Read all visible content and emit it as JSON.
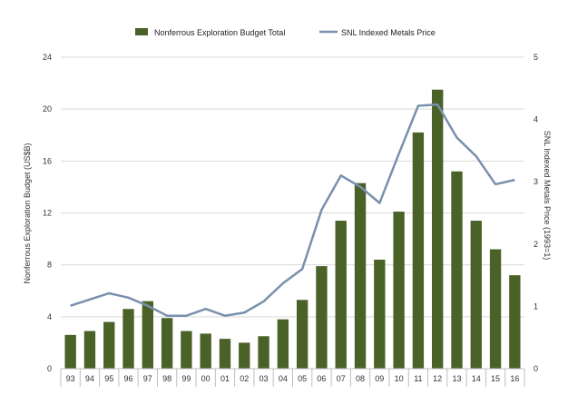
{
  "chart_data": {
    "type": "bar",
    "categories": [
      "93",
      "94",
      "95",
      "96",
      "97",
      "98",
      "99",
      "00",
      "01",
      "02",
      "03",
      "04",
      "05",
      "06",
      "07",
      "08",
      "09",
      "10",
      "11",
      "12",
      "13",
      "14",
      "15",
      "16"
    ],
    "series": [
      {
        "name": "Nonferrous Exploration Budget Total",
        "type": "bar",
        "axis": "left",
        "color": "#4a6128",
        "values": [
          2.6,
          2.9,
          3.6,
          4.6,
          5.2,
          3.9,
          2.9,
          2.7,
          2.3,
          2.0,
          2.5,
          3.8,
          5.3,
          7.9,
          11.4,
          14.3,
          8.4,
          12.1,
          18.2,
          21.5,
          15.2,
          11.4,
          9.2,
          7.2
        ]
      },
      {
        "name": "SNL Indexed Metals Price",
        "type": "line",
        "axis": "right",
        "color": "#7990ad",
        "values": [
          1.01,
          1.11,
          1.21,
          1.14,
          1.01,
          0.85,
          0.85,
          0.96,
          0.85,
          0.9,
          1.08,
          1.37,
          1.6,
          2.55,
          3.1,
          2.92,
          2.66,
          3.45,
          4.22,
          4.24,
          3.71,
          3.41,
          2.96,
          3.03
        ]
      }
    ],
    "ylabel": "Nonferrous Exploration Budget (US$B)",
    "y2label": "SNL Indexed Metals Price (1993=1)",
    "ylim": [
      0,
      24
    ],
    "y2lim": [
      0,
      5
    ],
    "yticks": [
      0,
      4,
      8,
      12,
      16,
      20,
      24
    ],
    "y2ticks": [
      0,
      1,
      2,
      3,
      4,
      5
    ],
    "grid": true,
    "legend_position": "top-center"
  }
}
